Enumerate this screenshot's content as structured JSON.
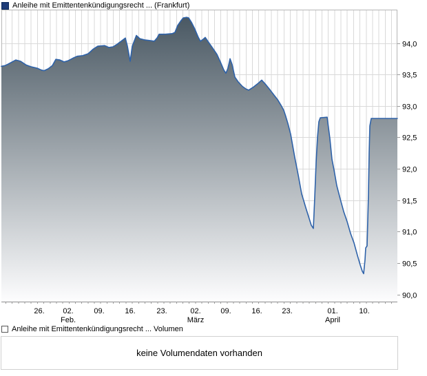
{
  "legend_top": {
    "label": "Anleihe mit Emittentenkündigungsrecht ... (Frankfurt)"
  },
  "legend_bottom": {
    "label": "Anleihe mit Emittentenkündigungsrecht ... Volumen"
  },
  "volume": {
    "message": "keine Volumendaten vorhanden"
  },
  "colors": {
    "line": "#2e62a9",
    "fill_top": "#45545f",
    "fill_bottom": "#fdfdfe",
    "grid": "#d9d9d9",
    "plot_border": "#b5b5b5",
    "axis_line": "#8c8c8c",
    "tick": "#999999",
    "text": "#000000",
    "legend_square": "#1e3c78"
  },
  "chart_data": {
    "type": "area",
    "title": "Anleihe mit Emittentenkündigungsrecht ... (Frankfurt)",
    "x_unit": "date (daily, late January to mid April)",
    "y_unit": "price (percent)",
    "grid": "on",
    "x_axis": {
      "ticks": [
        {
          "pos": 55,
          "label": "26."
        },
        {
          "pos": 97,
          "label": "02.",
          "month": "Feb."
        },
        {
          "pos": 142,
          "label": "09."
        },
        {
          "pos": 187,
          "label": "16."
        },
        {
          "pos": 233,
          "label": "23."
        },
        {
          "pos": 282,
          "label": "02.",
          "month": "März"
        },
        {
          "pos": 326,
          "label": "09."
        },
        {
          "pos": 371,
          "label": "16."
        },
        {
          "pos": 415,
          "label": "23."
        },
        {
          "pos": 481,
          "label": "01.",
          "month": "April"
        },
        {
          "pos": 527,
          "label": "10."
        }
      ]
    },
    "y_axis": {
      "min": 90.0,
      "max": 94.0,
      "step": 0.5,
      "ticks": [
        {
          "v": 94.0,
          "label": "94,0"
        },
        {
          "v": 93.5,
          "label": "93,5"
        },
        {
          "v": 93.0,
          "label": "93,0"
        },
        {
          "v": 92.5,
          "label": "92,5"
        },
        {
          "v": 92.0,
          "label": "92,0"
        },
        {
          "v": 91.5,
          "label": "91,5"
        },
        {
          "v": 91.0,
          "label": "91,0"
        },
        {
          "v": 90.5,
          "label": "90,5"
        },
        {
          "v": 90.0,
          "label": "90,0"
        }
      ]
    },
    "series": [
      {
        "name": "Anleihe mit Emittentenkündigungsrecht ... (Frankfurt)",
        "points": [
          [
            0,
            93.63
          ],
          [
            5,
            93.64
          ],
          [
            9,
            93.66
          ],
          [
            14,
            93.69
          ],
          [
            21,
            93.73
          ],
          [
            28,
            93.71
          ],
          [
            36,
            93.65
          ],
          [
            44,
            93.62
          ],
          [
            52,
            93.6
          ],
          [
            58,
            93.57
          ],
          [
            62,
            93.56
          ],
          [
            68,
            93.59
          ],
          [
            74,
            93.64
          ],
          [
            79,
            93.74
          ],
          [
            85,
            93.73
          ],
          [
            91,
            93.7
          ],
          [
            97,
            93.72
          ],
          [
            104,
            93.76
          ],
          [
            110,
            93.79
          ],
          [
            118,
            93.8
          ],
          [
            126,
            93.83
          ],
          [
            133,
            93.9
          ],
          [
            140,
            93.95
          ],
          [
            150,
            93.96
          ],
          [
            156,
            93.93
          ],
          [
            162,
            93.94
          ],
          [
            168,
            93.98
          ],
          [
            174,
            94.03
          ],
          [
            180,
            94.08
          ],
          [
            183,
            93.95
          ],
          [
            187,
            93.71
          ],
          [
            190,
            93.95
          ],
          [
            196,
            94.12
          ],
          [
            201,
            94.07
          ],
          [
            208,
            94.05
          ],
          [
            215,
            94.04
          ],
          [
            222,
            94.03
          ],
          [
            226,
            94.08
          ],
          [
            229,
            94.14
          ],
          [
            238,
            94.14
          ],
          [
            248,
            94.15
          ],
          [
            252,
            94.17
          ],
          [
            256,
            94.28
          ],
          [
            261,
            94.36
          ],
          [
            264,
            94.4
          ],
          [
            269,
            94.41
          ],
          [
            272,
            94.4
          ],
          [
            276,
            94.33
          ],
          [
            281,
            94.22
          ],
          [
            286,
            94.09
          ],
          [
            289,
            94.03
          ],
          [
            293,
            94.06
          ],
          [
            296,
            94.09
          ],
          [
            301,
            94.01
          ],
          [
            308,
            93.9
          ],
          [
            313,
            93.82
          ],
          [
            318,
            93.7
          ],
          [
            323,
            93.57
          ],
          [
            326,
            93.52
          ],
          [
            329,
            93.6
          ],
          [
            332,
            93.75
          ],
          [
            335,
            93.66
          ],
          [
            339,
            93.46
          ],
          [
            344,
            93.38
          ],
          [
            350,
            93.31
          ],
          [
            355,
            93.27
          ],
          [
            359,
            93.25
          ],
          [
            366,
            93.3
          ],
          [
            373,
            93.36
          ],
          [
            378,
            93.41
          ],
          [
            383,
            93.35
          ],
          [
            389,
            93.27
          ],
          [
            396,
            93.17
          ],
          [
            401,
            93.1
          ],
          [
            406,
            93.01
          ],
          [
            410,
            92.93
          ],
          [
            413,
            92.83
          ],
          [
            416,
            92.72
          ],
          [
            420,
            92.55
          ],
          [
            426,
            92.18
          ],
          [
            431,
            91.9
          ],
          [
            436,
            91.6
          ],
          [
            442,
            91.38
          ],
          [
            446,
            91.24
          ],
          [
            450,
            91.1
          ],
          [
            453,
            91.05
          ],
          [
            455,
            91.55
          ],
          [
            457,
            92.1
          ],
          [
            459,
            92.5
          ],
          [
            461,
            92.75
          ],
          [
            463,
            92.81
          ],
          [
            473,
            92.82
          ],
          [
            475,
            92.65
          ],
          [
            477,
            92.48
          ],
          [
            480,
            92.15
          ],
          [
            483,
            91.98
          ],
          [
            487,
            91.73
          ],
          [
            492,
            91.52
          ],
          [
            497,
            91.32
          ],
          [
            502,
            91.16
          ],
          [
            507,
            90.97
          ],
          [
            512,
            90.82
          ],
          [
            517,
            90.62
          ],
          [
            521,
            90.47
          ],
          [
            524,
            90.37
          ],
          [
            526,
            90.33
          ],
          [
            528,
            90.55
          ],
          [
            529,
            90.74
          ],
          [
            531,
            90.77
          ],
          [
            533,
            91.6
          ],
          [
            534,
            92.25
          ],
          [
            535,
            92.68
          ],
          [
            537,
            92.8
          ],
          [
            550,
            92.8
          ],
          [
            565,
            92.8
          ],
          [
            575,
            92.8
          ]
        ]
      }
    ]
  }
}
